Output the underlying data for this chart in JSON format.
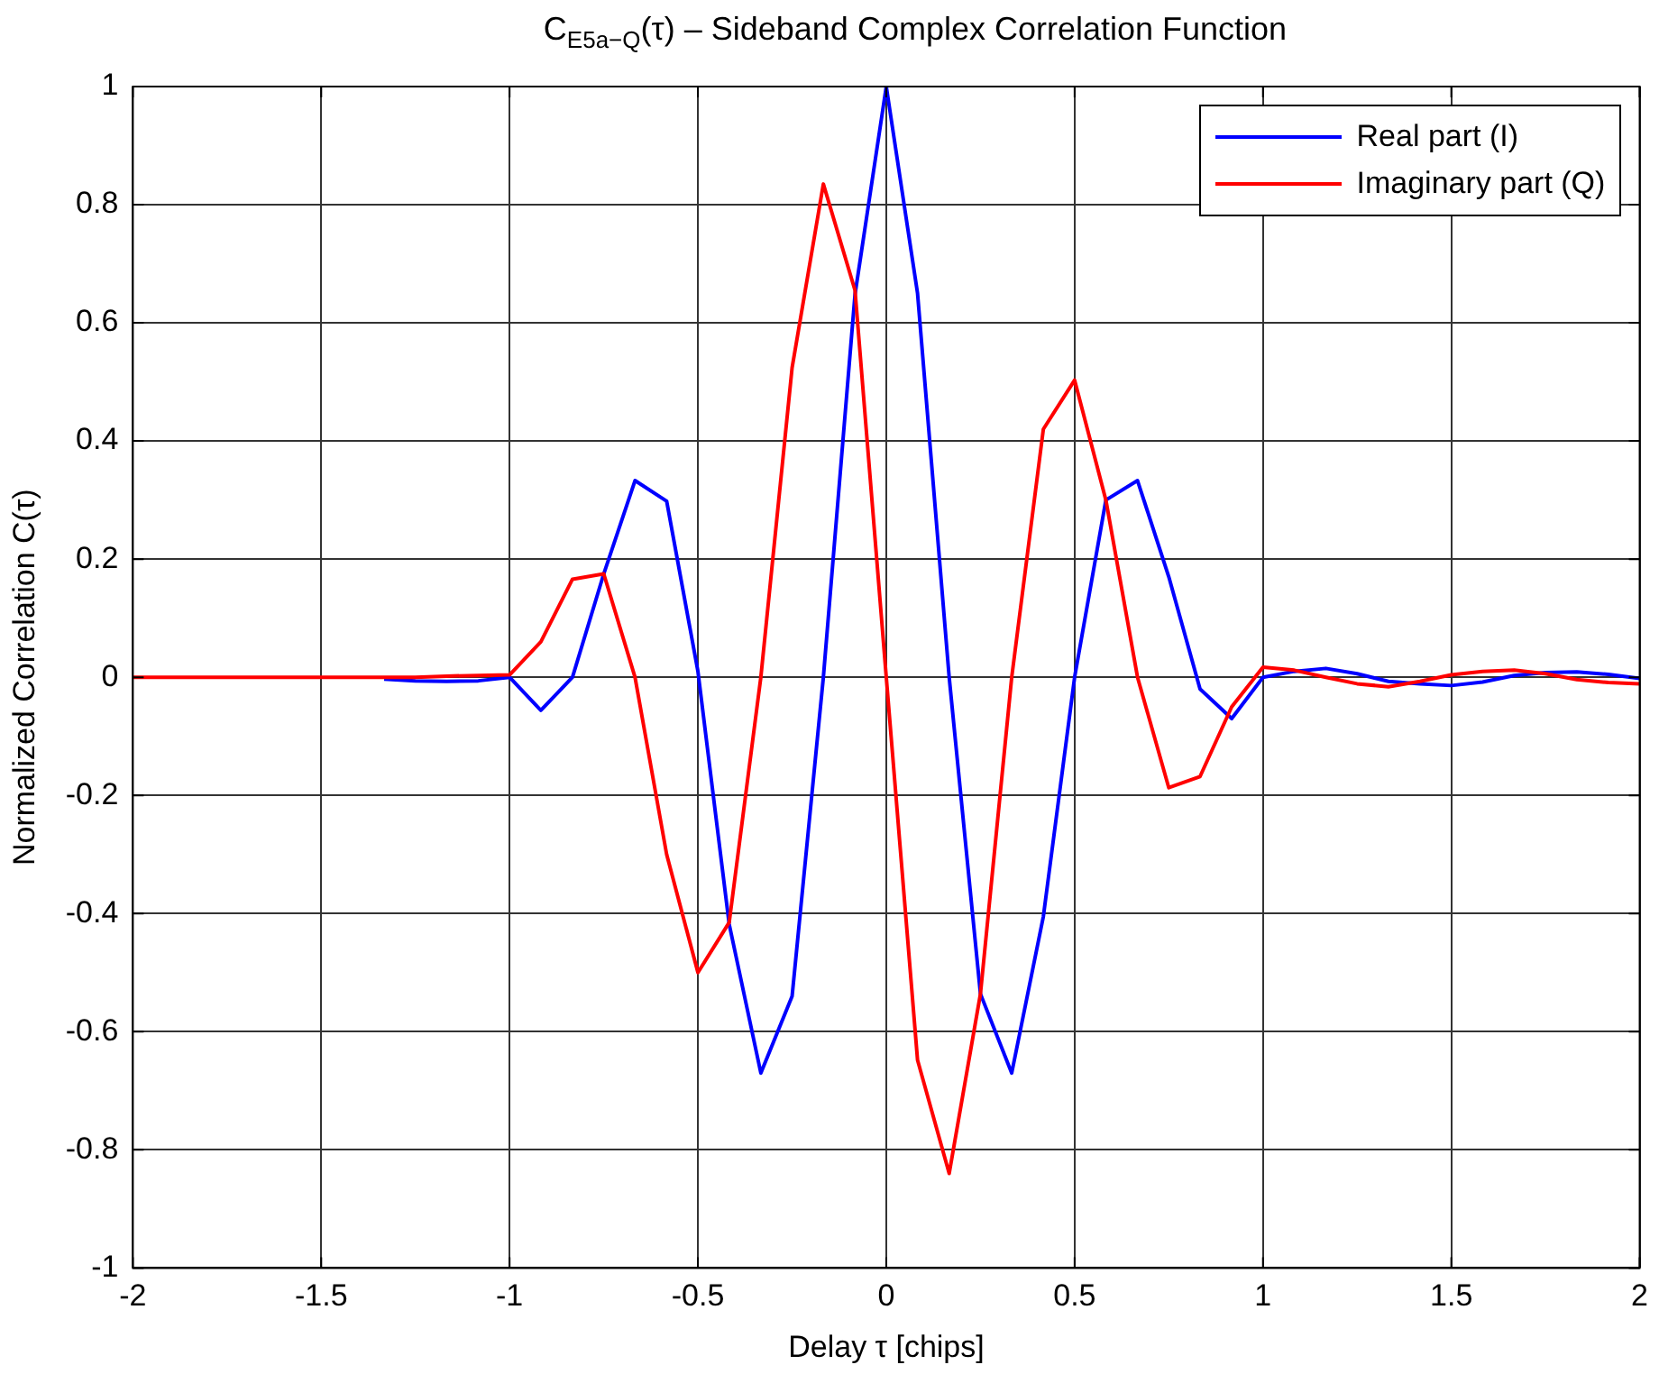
{
  "chart_data": {
    "type": "line",
    "title": "C$_{E5a−Q}$(τ) – Sideband Complex Correlation Function",
    "xlabel": "Delay τ [chips]",
    "ylabel": "Normalized Correlation C(τ)",
    "x": [
      -2,
      -1.917,
      -1.833,
      -1.75,
      -1.667,
      -1.583,
      -1.5,
      -1.417,
      -1.333,
      -1.25,
      -1.167,
      -1.083,
      -1,
      -0.917,
      -0.833,
      -0.75,
      -0.667,
      -0.583,
      -0.5,
      -0.417,
      -0.333,
      -0.25,
      -0.167,
      -0.083,
      0,
      0.083,
      0.167,
      0.25,
      0.333,
      0.417,
      0.5,
      0.583,
      0.667,
      0.75,
      0.833,
      0.917,
      1,
      1.083,
      1.167,
      1.25,
      1.333,
      1.417,
      1.5,
      1.583,
      1.667,
      1.75,
      1.833,
      1.917,
      2
    ],
    "series": [
      {
        "name": "Real part (I)",
        "color": "#0000ff",
        "values": [
          null,
          null,
          null,
          null,
          null,
          null,
          null,
          null,
          -0.003,
          -0.006,
          -0.007,
          -0.006,
          0,
          -0.056,
          0,
          0.175,
          0.333,
          0.298,
          0.01,
          -0.418,
          -0.67,
          -0.54,
          0,
          0.648,
          1,
          0.65,
          0,
          -0.536,
          -0.67,
          -0.405,
          0,
          0.3,
          0.333,
          0.17,
          -0.02,
          -0.07,
          0,
          0.01,
          0.015,
          0.006,
          -0.007,
          -0.011,
          -0.014,
          -0.008,
          0.003,
          0.008,
          0.009,
          0.005,
          -0.002
        ]
      },
      {
        "name": "Imaginary part (Q)",
        "color": "#ff0000",
        "values": [
          0,
          0,
          0,
          0,
          0,
          0,
          0,
          0,
          0,
          0,
          0.002,
          0.003,
          0.004,
          0.06,
          0.166,
          0.175,
          0,
          -0.3,
          -0.5,
          -0.415,
          0,
          0.524,
          0.835,
          0.655,
          0,
          -0.648,
          -0.84,
          -0.536,
          0,
          0.42,
          0.503,
          0.3,
          0,
          -0.187,
          -0.168,
          -0.05,
          0.017,
          0.012,
          0,
          -0.011,
          -0.016,
          -0.007,
          0.004,
          0.01,
          0.012,
          0.006,
          -0.004,
          -0.009,
          -0.011
        ]
      }
    ],
    "xlim": [
      -2,
      2
    ],
    "xticks": [
      -2,
      -1.5,
      -1,
      -0.5,
      0,
      0.5,
      1,
      1.5,
      2
    ],
    "ylim": [
      -1,
      1
    ],
    "yticks": [
      -1,
      -0.8,
      -0.6,
      -0.4,
      -0.2,
      0,
      0.2,
      0.4,
      0.6,
      0.8,
      1
    ],
    "grid": true,
    "legend": "top right",
    "line_style": "solid",
    "marker": "none"
  }
}
